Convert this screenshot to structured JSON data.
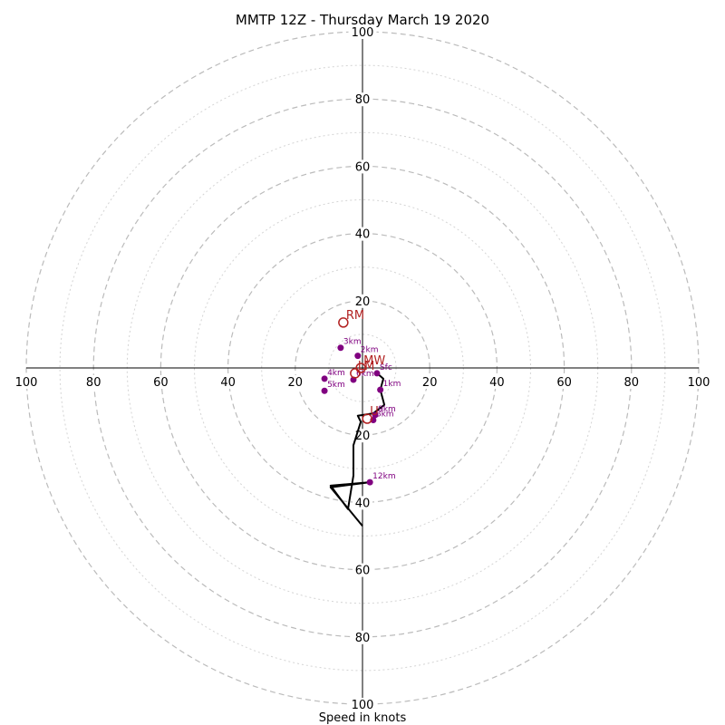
{
  "chart_data": {
    "type": "hodograph",
    "title": "MMTP 12Z - Thursday March 19 2020",
    "xlabel": "Speed in knots",
    "range_knots": 100,
    "ring_labels": [
      20,
      40,
      60,
      80,
      100
    ],
    "dashed_rings": [
      20,
      40,
      60,
      80,
      100
    ],
    "dotted_rings": [
      10,
      30,
      50,
      70,
      90
    ],
    "wind_trace": [
      [
        4.3,
        -1.6
      ],
      [
        6.2,
        -3.2
      ],
      [
        5.3,
        -6.5
      ],
      [
        6.5,
        -11.0
      ],
      [
        3.2,
        -13.5
      ],
      [
        -1.4,
        -14.2
      ],
      [
        -0.5,
        -16.0
      ],
      [
        -2.7,
        -23.0
      ],
      [
        -2.7,
        -32.0
      ],
      [
        -4.3,
        -42.0
      ],
      [
        -9.5,
        -35.0
      ],
      [
        2.2,
        -34.0
      ],
      [
        -9.5,
        -35.5
      ],
      [
        0,
        -47
      ]
    ],
    "height_points": [
      {
        "label": "Sfc",
        "u": 4.3,
        "v": -1.6
      },
      {
        "label": "1km",
        "u": 5.3,
        "v": -6.5
      },
      {
        "label": "2km",
        "u": -1.4,
        "v": 3.6
      },
      {
        "label": "3km",
        "u": -6.5,
        "v": 6.0
      },
      {
        "label": "4km",
        "u": -11.3,
        "v": -3.2
      },
      {
        "label": "5km",
        "u": -11.3,
        "v": -6.8
      },
      {
        "label": "6km",
        "u": -2.7,
        "v": -3.5
      },
      {
        "label": "9km",
        "u": 3.8,
        "v": -14.0
      },
      {
        "label": "8km",
        "u": 3.2,
        "v": -15.5
      },
      {
        "label": "12km",
        "u": 2.2,
        "v": -34.0
      }
    ],
    "markers": [
      {
        "label": "RM",
        "u": -5.7,
        "v": 13.5
      },
      {
        "label": "MW",
        "u": -0.5,
        "v": 0.0
      },
      {
        "label": "LM",
        "u": -2.2,
        "v": -1.6
      },
      {
        "label": "U",
        "u": 1.4,
        "v": -15.1
      }
    ]
  }
}
